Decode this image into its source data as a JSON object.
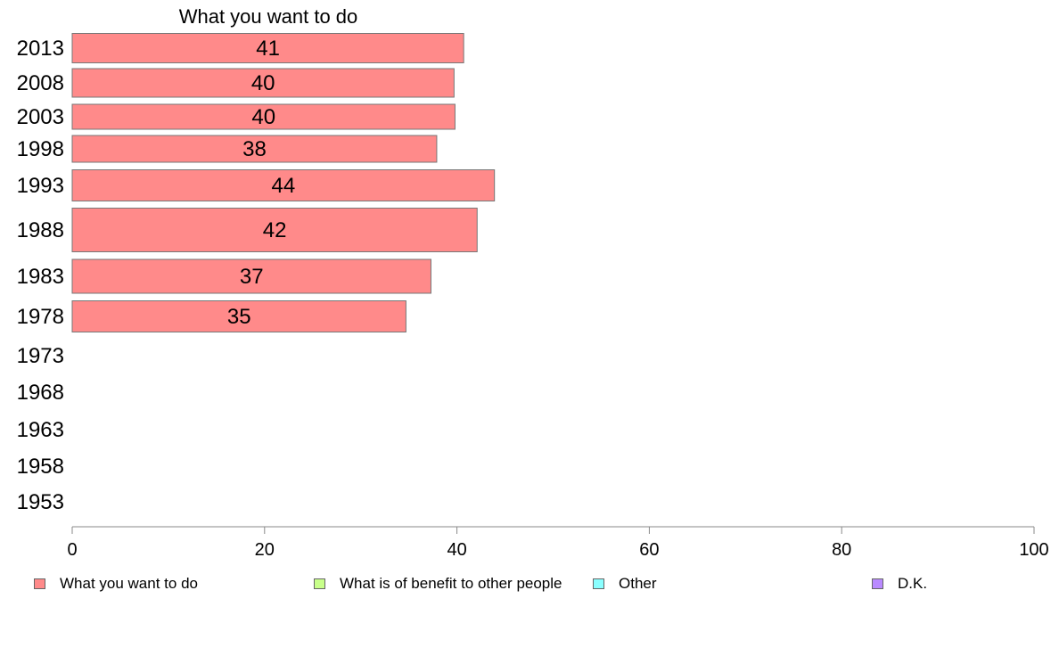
{
  "chart_data": {
    "type": "bar",
    "orientation": "horizontal",
    "panel_title": "What you want to do",
    "categories": [
      "2013",
      "2008",
      "2003",
      "1998",
      "1993",
      "1988",
      "1983",
      "1978",
      "1973",
      "1968",
      "1963",
      "1958",
      "1953"
    ],
    "series": [
      {
        "name": "What you want to do",
        "color": "#ff8a8a",
        "values": [
          40.7,
          39.7,
          39.8,
          37.9,
          43.9,
          42.1,
          37.3,
          34.7,
          null,
          null,
          null,
          null,
          null
        ],
        "labels": [
          "41",
          "40",
          "40",
          "38",
          "44",
          "42",
          "37",
          "35",
          null,
          null,
          null,
          null,
          null
        ]
      }
    ],
    "xlim": [
      0,
      100
    ],
    "xticks": [
      "0",
      "20",
      "40",
      "60",
      "80",
      "100"
    ],
    "grid": false,
    "legend": {
      "position": "bottom",
      "items": [
        {
          "label": "What you want to do",
          "color": "#ff8a8a"
        },
        {
          "label": "What is of benefit to other people",
          "color": "#c8ff8a"
        },
        {
          "label": "Other",
          "color": "#8affff"
        },
        {
          "label": "D.K.",
          "color": "#b98aff"
        }
      ]
    }
  }
}
